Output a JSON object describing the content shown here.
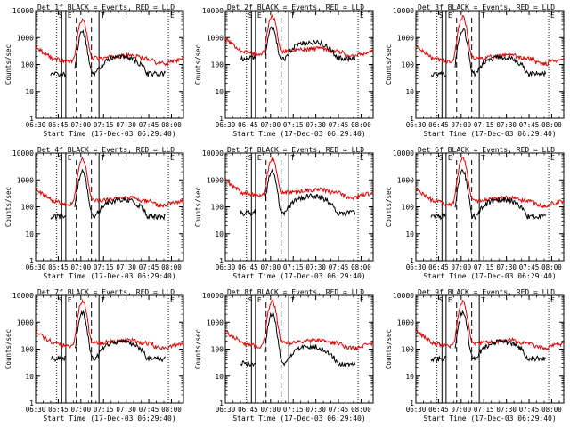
{
  "chart_data": {
    "type": "line",
    "figure_layout": "3x3 grid of panels",
    "common": {
      "xlabel": "Start Time (17-Dec-03 06:29:40)",
      "ylabel": "Counts/sec",
      "title_suffix": "BLACK = Events, RED = LLD",
      "xticks": [
        "06:30",
        "06:45",
        "07:00",
        "07:15",
        "07:30",
        "07:45",
        "08:00"
      ],
      "xlim_minutes": [
        0,
        98
      ],
      "yscale": "log",
      "ylim": [
        1,
        10000
      ],
      "yticks": [
        "1",
        "10",
        "100",
        "1000",
        "10000"
      ],
      "flags": [
        "S",
        "E",
        "T"
      ],
      "series_names": [
        "Events",
        "LLD"
      ],
      "series_colors": {
        "Events": "#000000",
        "LLD": "#e00000"
      }
    },
    "panels": [
      {
        "title": "Det 1f",
        "det": 1,
        "lld_base": 150,
        "ev_base": 45,
        "peak": 4500
      },
      {
        "title": "Det 2f",
        "det": 2,
        "lld_base": 280,
        "ev_base": 170,
        "peak": 6000
      },
      {
        "title": "Det 3f",
        "det": 3,
        "lld_base": 150,
        "ev_base": 45,
        "peak": 6000
      },
      {
        "title": "Det 4f",
        "det": 4,
        "lld_base": 150,
        "ev_base": 45,
        "peak": 6000
      },
      {
        "title": "Det 5f",
        "det": 5,
        "lld_base": 300,
        "ev_base": 60,
        "peak": 6000
      },
      {
        "title": "Det 6f",
        "det": 6,
        "lld_base": 150,
        "ev_base": 45,
        "peak": 6500
      },
      {
        "title": "Det 7f",
        "det": 7,
        "lld_base": 150,
        "ev_base": 45,
        "peak": 6000
      },
      {
        "title": "Det 8f",
        "det": 8,
        "lld_base": 150,
        "ev_base": 30,
        "peak": 6000
      },
      {
        "title": "Det 9f",
        "det": 9,
        "lld_base": 150,
        "ev_base": 45,
        "peak": 6000
      }
    ]
  }
}
